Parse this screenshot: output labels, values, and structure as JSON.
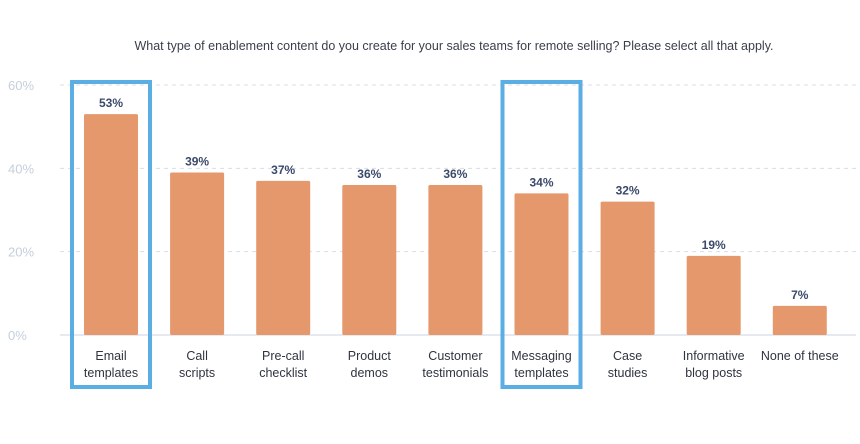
{
  "chart_data": {
    "type": "bar",
    "title": "What type of enablement content do you create for your sales teams for remote selling? Please select all that apply.",
    "xlabel": "",
    "ylabel": "",
    "ylim": [
      0,
      60
    ],
    "yticks": [
      0,
      20,
      40,
      60
    ],
    "ytick_labels": [
      "0%",
      "20%",
      "40%",
      "60%"
    ],
    "grid": true,
    "categories": [
      [
        "Email",
        "templates"
      ],
      [
        "Call",
        "scripts"
      ],
      [
        "Pre-call",
        "checklist"
      ],
      [
        "Product",
        "demos"
      ],
      [
        "Customer",
        "testimonials"
      ],
      [
        "Messaging",
        "templates"
      ],
      [
        "Case",
        "studies"
      ],
      [
        "Informative",
        "blog posts"
      ],
      [
        "None of these"
      ]
    ],
    "values": [
      53,
      39,
      37,
      36,
      36,
      34,
      32,
      19,
      7
    ],
    "value_labels": [
      "53%",
      "39%",
      "37%",
      "36%",
      "36%",
      "34%",
      "32%",
      "19%",
      "7%"
    ],
    "highlighted": [
      0,
      5
    ]
  },
  "colors": {
    "bar": "#e5986c",
    "value_label": "#3b4a6b",
    "axis_label": "#c5cfdd",
    "title": "#3a3f4b",
    "category_label": "#2f3440",
    "grid": "#d8dee6",
    "highlight": "#5aaee3"
  }
}
